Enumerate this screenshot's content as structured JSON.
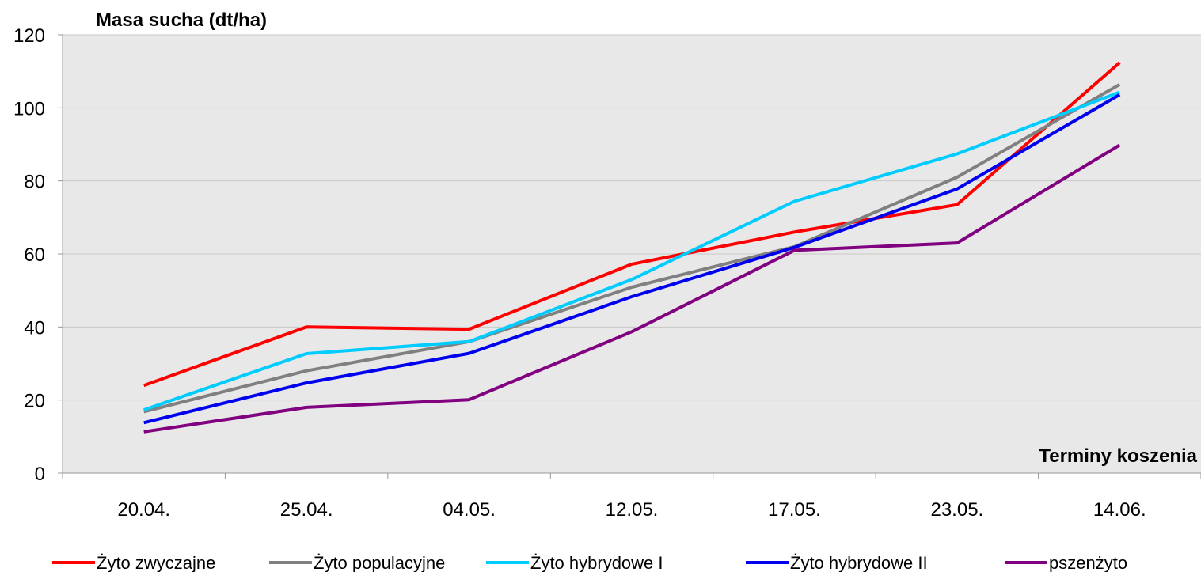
{
  "chart_data": {
    "type": "line",
    "title": "",
    "ylabel": "Masa sucha (dt/ha)",
    "xlabel": "Terminy koszenia",
    "categories": [
      "20.04.",
      "25.04.",
      "04.05.",
      "12.05.",
      "17.05.",
      "23.05.",
      "14.06."
    ],
    "ylim": [
      0,
      120
    ],
    "yticks": [
      0,
      20,
      40,
      60,
      80,
      100,
      120
    ],
    "grid": true,
    "legend": "bottom",
    "plot_background": "#e8e8e8",
    "series": [
      {
        "name": "Żyto zwyczajne",
        "color": "#ff0000",
        "values": [
          24,
          40,
          39.4,
          57.2,
          66,
          73.5,
          112.4
        ]
      },
      {
        "name": "Żyto populacyjne",
        "color": "#808080",
        "values": [
          16.8,
          28,
          36,
          50.9,
          62,
          81,
          106.4
        ]
      },
      {
        "name": "Żyto hybrydowe I",
        "color": "#00ccff",
        "values": [
          17.3,
          32.7,
          36,
          53,
          74.4,
          87.4,
          104.3
        ]
      },
      {
        "name": "Żyto hybrydowe II",
        "color": "#0000ee",
        "values": [
          13.8,
          24.7,
          32.8,
          48.3,
          61.8,
          77.8,
          103.6
        ]
      },
      {
        "name": "pszenżyto",
        "color": "#800080",
        "values": [
          11.3,
          18,
          20.1,
          38.7,
          61,
          63,
          89.8
        ]
      }
    ]
  }
}
